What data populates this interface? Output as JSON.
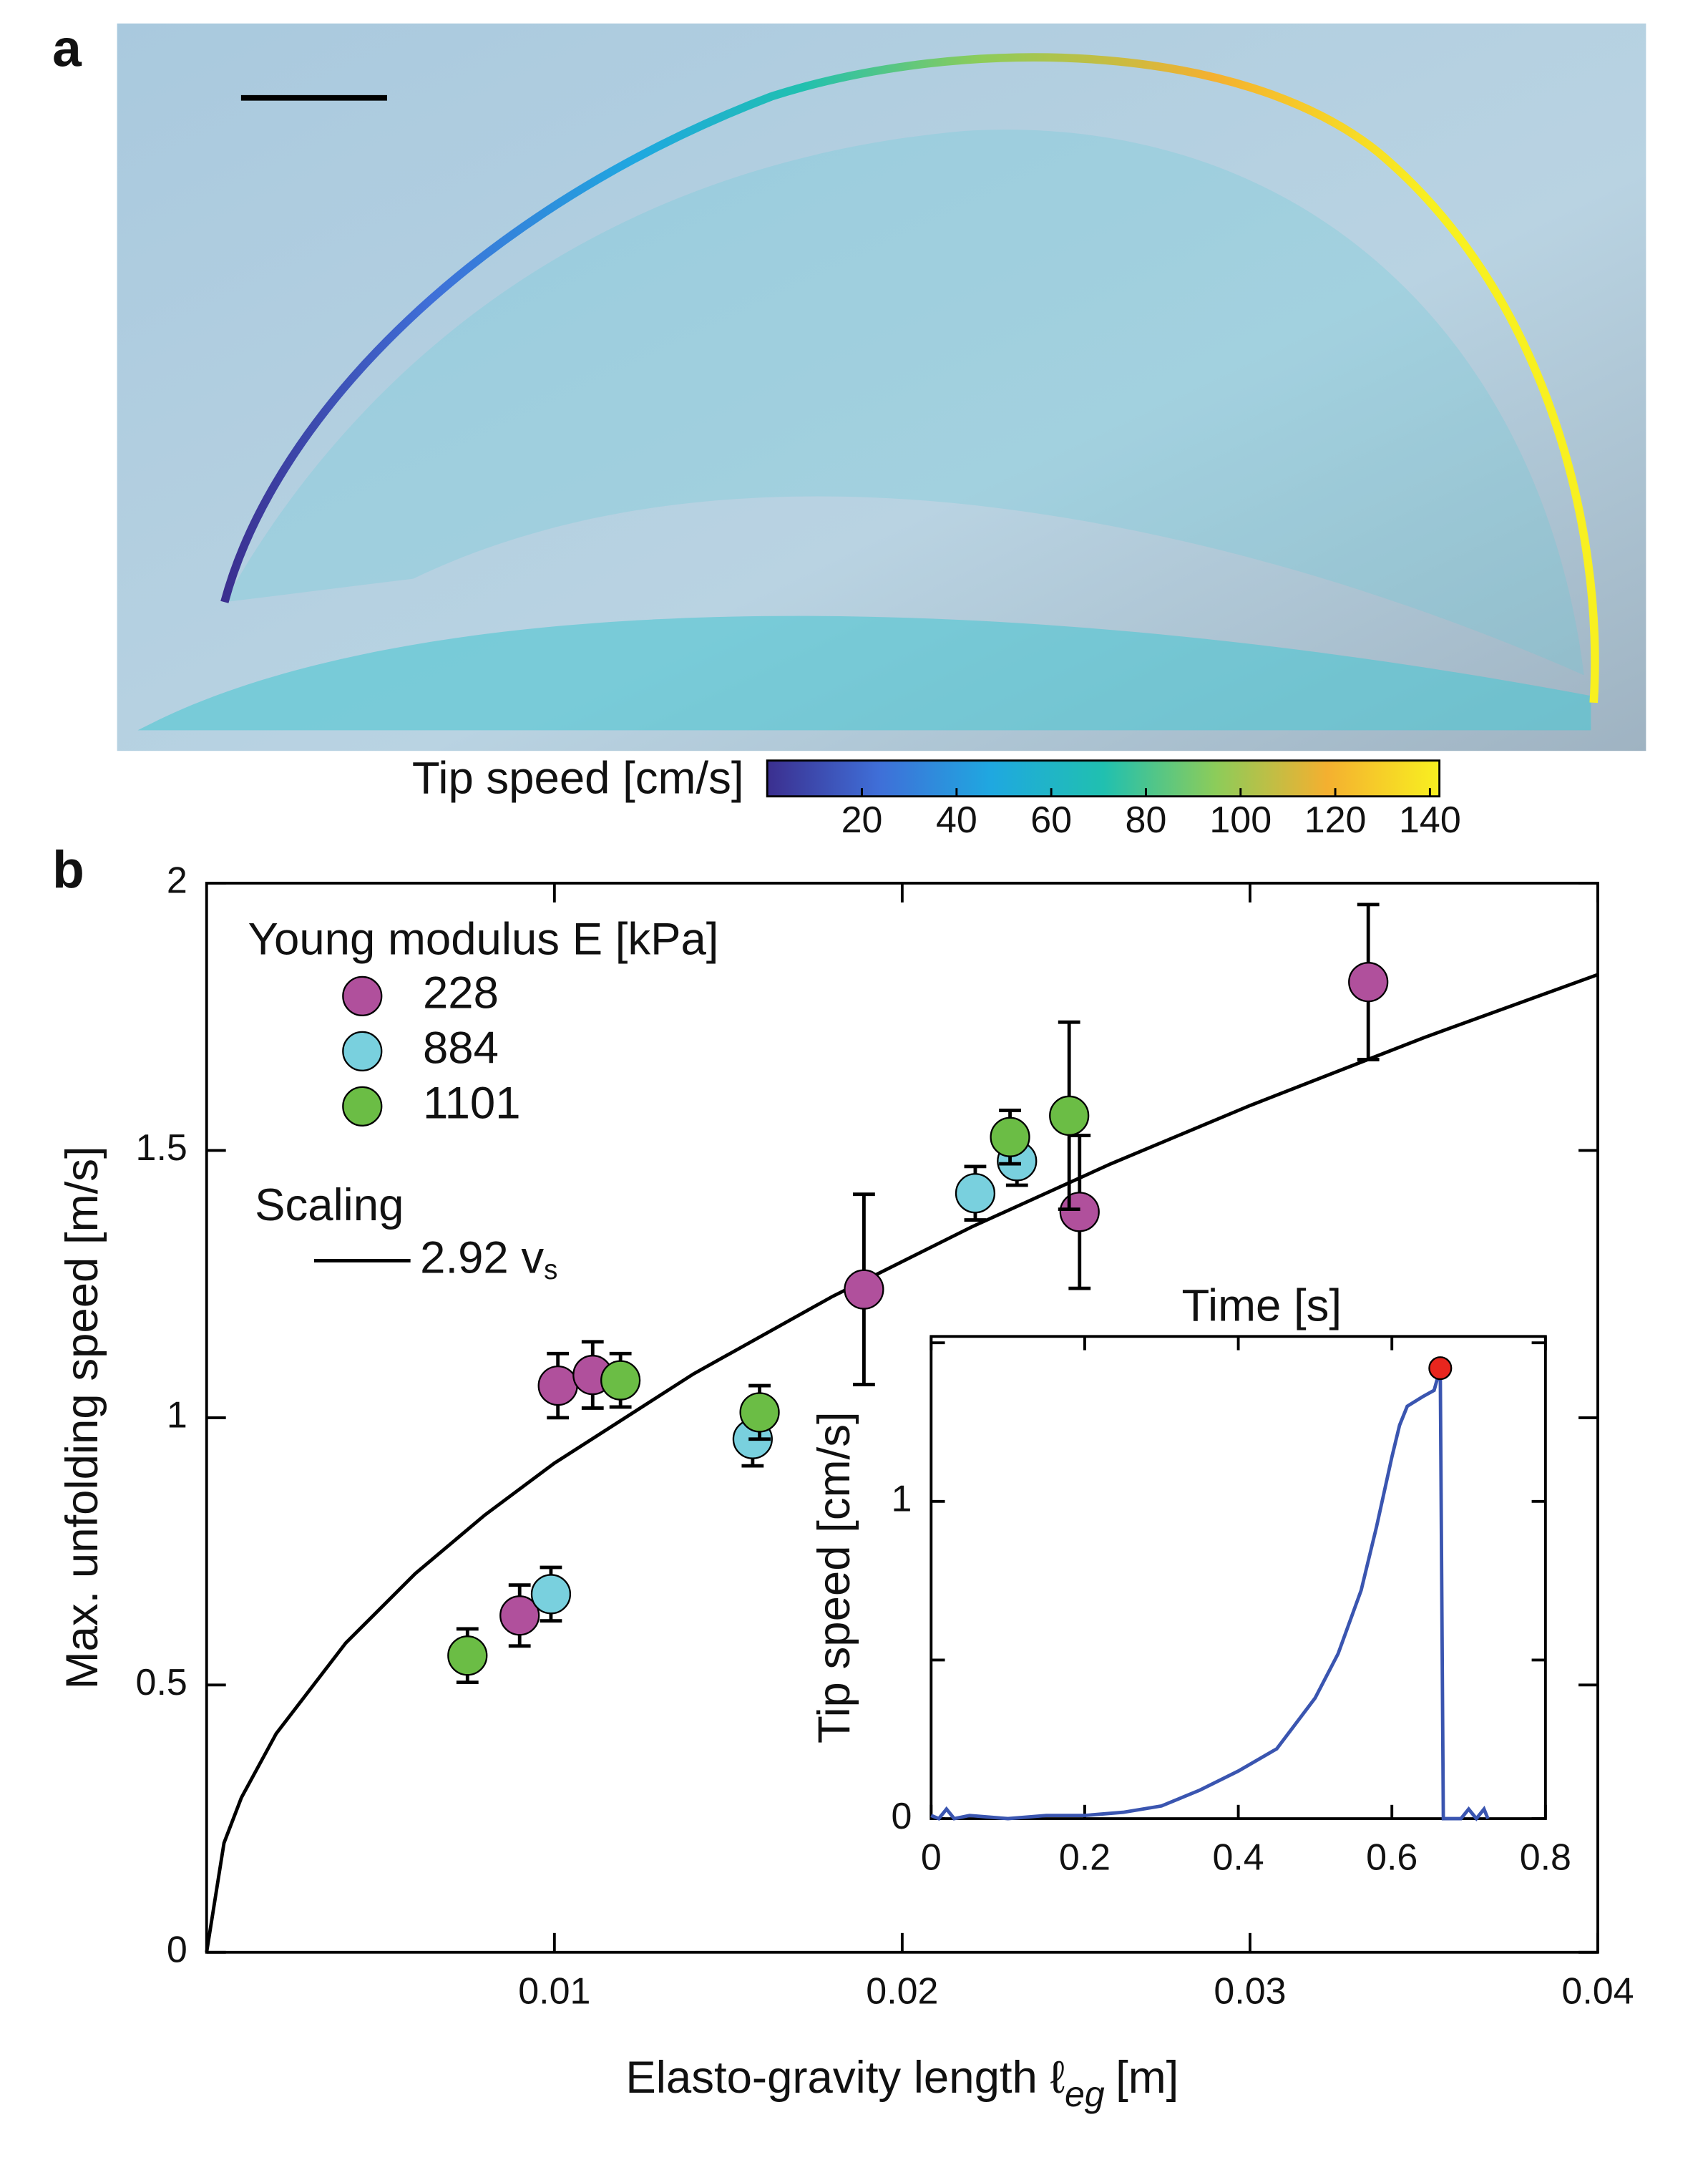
{
  "panels": {
    "a": "a",
    "b": "b"
  },
  "colorbar": {
    "label": "Tip speed  [cm/s]",
    "lim": [
      0,
      142
    ],
    "ticks": [
      20,
      40,
      60,
      80,
      100,
      120,
      140
    ],
    "colors": [
      "#3b2f8f",
      "#3f6fd8",
      "#1fa8e0",
      "#20c0b0",
      "#8ccc5a",
      "#f4b030",
      "#f8f020"
    ]
  },
  "chart_data": [
    {
      "type": "scatter",
      "ylabel": "Max. unfolding speed [m/s]",
      "xlabel": "Elasto-gravity length ℓ",
      "xlabel_sub": "eg",
      "xlabel_end": "[m]",
      "xlim": [
        0,
        0.04
      ],
      "ylim": [
        0,
        2
      ],
      "xticks": [
        0.01,
        0.02,
        0.03,
        0.04
      ],
      "yticks": [
        0,
        0.5,
        1,
        1.5,
        2
      ],
      "legend_title": "Young modulus E [kPa]",
      "series": [
        {
          "name": "228",
          "color": "#b0509c",
          "x": [
            0.0101,
            0.0111,
            0.009,
            0.0189,
            0.0251,
            0.0334
          ],
          "values": [
            1.06,
            1.08,
            0.63,
            1.24,
            1.385,
            1.815
          ],
          "errors": [
            0.06,
            0.062,
            0.057,
            0.178,
            0.143,
            0.145
          ]
        },
        {
          "name": "884",
          "color": "#79d0de",
          "x": [
            0.0099,
            0.0157,
            0.0221,
            0.0233
          ],
          "values": [
            0.67,
            0.96,
            1.42,
            1.48
          ],
          "errors": [
            0.05,
            0.05,
            0.05,
            0.045
          ]
        },
        {
          "name": "1101",
          "color": "#6bbd45",
          "x": [
            0.0075,
            0.0119,
            0.0159,
            0.0231,
            0.0248
          ],
          "values": [
            0.555,
            1.07,
            1.01,
            1.525,
            1.565
          ],
          "errors": [
            0.05,
            0.05,
            0.05,
            0.05,
            0.175
          ]
        }
      ],
      "fit": {
        "title": "Scaling",
        "name": "2.92 v",
        "name_sub": "s",
        "color": "#000000",
        "x": [
          0,
          0.0005,
          0.001,
          0.002,
          0.004,
          0.006,
          0.008,
          0.01,
          0.014,
          0.018,
          0.022,
          0.026,
          0.03,
          0.035,
          0.04
        ],
        "values": [
          0,
          0.2045,
          0.2892,
          0.409,
          0.5785,
          0.7084,
          0.818,
          0.915,
          1.082,
          1.227,
          1.357,
          1.475,
          1.584,
          1.711,
          1.829
        ]
      }
    },
    {
      "type": "line",
      "title": "Time [s]",
      "ylabel": "Tip speed [cm/s]",
      "xlim": [
        0,
        0.8
      ],
      "ylim": [
        0,
        1.52
      ],
      "xticks": [
        0,
        0.2,
        0.4,
        0.6,
        0.8
      ],
      "yticks": [
        0,
        1
      ],
      "yminor_ticks": [
        0.5,
        1.5
      ],
      "color": "#3a55b0",
      "x": [
        0,
        0.01,
        0.02,
        0.03,
        0.05,
        0.1,
        0.15,
        0.2,
        0.25,
        0.3,
        0.35,
        0.4,
        0.45,
        0.5,
        0.53,
        0.56,
        0.58,
        0.6,
        0.61,
        0.62,
        0.64,
        0.655,
        0.663,
        0.667,
        0.69,
        0.7,
        0.71,
        0.72,
        0.725
      ],
      "values": [
        0.01,
        0,
        0.03,
        0,
        0.01,
        0,
        0.01,
        0.01,
        0.02,
        0.04,
        0.09,
        0.15,
        0.22,
        0.38,
        0.52,
        0.72,
        0.92,
        1.14,
        1.24,
        1.3,
        1.33,
        1.35,
        1.42,
        0,
        0,
        0.03,
        0,
        0.03,
        0
      ],
      "marker": {
        "x": 0.663,
        "value": 1.42,
        "color": "#e8261e"
      }
    }
  ]
}
